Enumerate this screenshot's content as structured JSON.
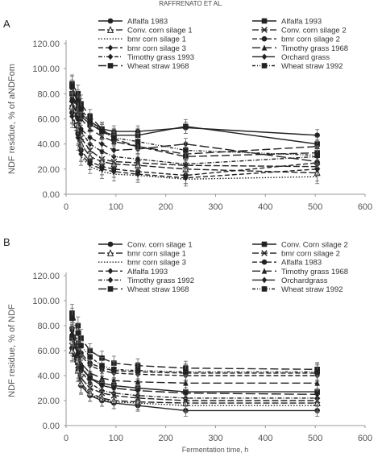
{
  "header": {
    "running_head": "RAFFRENATO ET AL."
  },
  "xlabel": "Fermentation time, h",
  "chart_data": [
    {
      "panel": "A",
      "type": "line",
      "ylabel": "NDF residue, % of aNDFom",
      "xlim": [
        0,
        600
      ],
      "ylim": [
        0,
        120
      ],
      "xticks": [
        0,
        100,
        200,
        300,
        400,
        500,
        600
      ],
      "yticks": [
        "0.00",
        "20.00",
        "40.00",
        "60.00",
        "80.00",
        "100.00",
        "120.00"
      ],
      "x": [
        12,
        24,
        30,
        48,
        72,
        96,
        144,
        240,
        504
      ],
      "series": [
        {
          "name": "Alfalfa 1983",
          "marker": "circle",
          "dash": "",
          "values": [
            85,
            72,
            64,
            58,
            52,
            50,
            50,
            53,
            47
          ]
        },
        {
          "name": "Alfalfa 1993",
          "marker": "square",
          "dash": "",
          "values": [
            80,
            68,
            62,
            56,
            50,
            47,
            47,
            54,
            40
          ]
        },
        {
          "name": "Conv. corn silage 1",
          "marker": "triangle-open",
          "dash": "8,3",
          "values": [
            70,
            55,
            40,
            30,
            26,
            24,
            23,
            20,
            17
          ]
        },
        {
          "name": "Conv. corn silage 2",
          "marker": "x",
          "dash": "8,3",
          "values": [
            72,
            58,
            45,
            35,
            28,
            26,
            25,
            23,
            22
          ]
        },
        {
          "name": "bmr corn silage 1",
          "marker": "none",
          "dash": "1.5,2",
          "values": [
            60,
            42,
            30,
            22,
            18,
            16,
            15,
            12,
            14
          ]
        },
        {
          "name": "bmr corn silage 2",
          "marker": "circle",
          "dash": "6,3",
          "values": [
            65,
            48,
            35,
            26,
            22,
            20,
            18,
            15,
            25
          ]
        },
        {
          "name": "bmr corn silage 3",
          "marker": "diamond",
          "dash": "6,3",
          "values": [
            62,
            45,
            32,
            24,
            20,
            18,
            16,
            13,
            20
          ]
        },
        {
          "name": "Timothy grass 1968",
          "marker": "triangle",
          "dash": "10,4",
          "values": [
            78,
            66,
            60,
            52,
            46,
            42,
            38,
            32,
            38
          ]
        },
        {
          "name": "Timothy grass 1993",
          "marker": "diamond",
          "dash": "5,2,1,2",
          "values": [
            75,
            60,
            50,
            40,
            34,
            30,
            28,
            24,
            30
          ]
        },
        {
          "name": "Orchard grass",
          "marker": "diamond",
          "dash": "12,4",
          "values": [
            74,
            60,
            52,
            45,
            40,
            35,
            36,
            40,
            26
          ]
        },
        {
          "name": "Wheat straw 1968",
          "marker": "square",
          "dash": "10,4",
          "values": [
            88,
            80,
            72,
            62,
            52,
            44,
            38,
            30,
            33
          ]
        },
        {
          "name": "Wheat straw 1992",
          "marker": "square",
          "dash": "4,2,1,2,1,2",
          "values": [
            86,
            75,
            68,
            58,
            50,
            45,
            42,
            35,
            31
          ]
        }
      ]
    },
    {
      "panel": "B",
      "type": "line",
      "ylabel": "NDF residue, % of NDF",
      "xlim": [
        0,
        600
      ],
      "ylim": [
        0,
        120
      ],
      "xticks": [
        0,
        100,
        200,
        300,
        400,
        500,
        600
      ],
      "yticks": [
        "0.00",
        "20.00",
        "40.00",
        "60.00",
        "80.00",
        "100.00",
        "120.00"
      ],
      "x": [
        12,
        24,
        30,
        48,
        72,
        96,
        144,
        240,
        504
      ],
      "series": [
        {
          "name": "Conv. corn silage 1",
          "marker": "circle",
          "dash": "",
          "values": [
            62,
            44,
            32,
            24,
            20,
            18,
            16,
            12,
            12
          ]
        },
        {
          "name": "Conv. Corn silage 2",
          "marker": "square",
          "dash": "",
          "values": [
            70,
            56,
            46,
            38,
            34,
            32,
            30,
            27,
            27
          ]
        },
        {
          "name": "bmr corn silage 1",
          "marker": "triangle-open",
          "dash": "8,3",
          "values": [
            60,
            44,
            34,
            26,
            22,
            20,
            19,
            18,
            18
          ]
        },
        {
          "name": "bmr corn silage 2",
          "marker": "x",
          "dash": "8,3",
          "values": [
            64,
            48,
            38,
            30,
            26,
            24,
            22,
            20,
            20
          ]
        },
        {
          "name": "bmr corn silage 3",
          "marker": "none",
          "dash": "1.5,2",
          "values": [
            58,
            42,
            32,
            25,
            21,
            19,
            18,
            16,
            16
          ]
        },
        {
          "name": "Alfalfa 1983",
          "marker": "circle",
          "dash": "6,3",
          "values": [
            78,
            66,
            58,
            50,
            46,
            44,
            43,
            42,
            42
          ]
        },
        {
          "name": "Alfalfa 1993",
          "marker": "diamond",
          "dash": "6,3",
          "values": [
            76,
            64,
            56,
            48,
            44,
            42,
            41,
            40,
            40
          ]
        },
        {
          "name": "Timothy grass 1968",
          "marker": "triangle",
          "dash": "10,4",
          "values": [
            74,
            60,
            50,
            42,
            38,
            36,
            35,
            34,
            34
          ]
        },
        {
          "name": "Timothy grass 1992",
          "marker": "diamond",
          "dash": "5,2,1,2",
          "values": [
            72,
            56,
            44,
            34,
            28,
            26,
            24,
            22,
            22
          ]
        },
        {
          "name": "Orchardgrass",
          "marker": "diamond",
          "dash": "12,4",
          "values": [
            73,
            58,
            47,
            38,
            32,
            30,
            28,
            26,
            25
          ]
        },
        {
          "name": "Wheat straw 1968",
          "marker": "square",
          "dash": "10,4",
          "values": [
            90,
            80,
            70,
            60,
            54,
            50,
            48,
            46,
            45
          ]
        },
        {
          "name": "Wheat straw 1992",
          "marker": "square",
          "dash": "4,2,1,2,1,2",
          "values": [
            86,
            74,
            64,
            55,
            48,
            45,
            44,
            43,
            43
          ]
        }
      ]
    }
  ]
}
